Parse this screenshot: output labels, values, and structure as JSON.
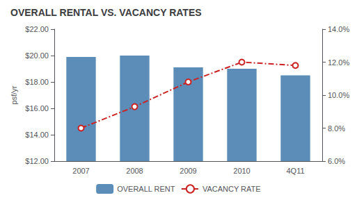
{
  "chart_data": {
    "type": "bar",
    "title": "OVERALL RENTAL VS. VACANCY RATES",
    "categories": [
      "2007",
      "2008",
      "2009",
      "2010",
      "4Q11"
    ],
    "ylabel": "psf/yr",
    "ylim": [
      12.0,
      22.0
    ],
    "yticks": [
      {
        "value": 12.0,
        "label": "$12.00"
      },
      {
        "value": 14.0,
        "label": "$14.00"
      },
      {
        "value": 16.0,
        "label": "$16.00"
      },
      {
        "value": 18.0,
        "label": "$18.00"
      },
      {
        "value": 20.0,
        "label": "$20.00"
      },
      {
        "value": 22.0,
        "label": "$22.00"
      }
    ],
    "y2lim": [
      0.06,
      0.14
    ],
    "y2ticks": [
      {
        "value": 0.06,
        "label": "6.0%"
      },
      {
        "value": 0.08,
        "label": "8.0%"
      },
      {
        "value": 0.1,
        "label": "10.0%"
      },
      {
        "value": 0.12,
        "label": "12.0%"
      },
      {
        "value": 0.14,
        "label": "14.0%"
      }
    ],
    "grid": false,
    "legend": "bottom",
    "series": [
      {
        "name": "OVERALL RENT",
        "type": "bar",
        "color": "#5b8db8",
        "values": [
          19.9,
          20.0,
          19.1,
          19.0,
          18.5
        ]
      },
      {
        "name": "VACANCY RATE",
        "type": "line",
        "color": "#cc2222",
        "line_style": "dashdot",
        "marker": "circle",
        "axis": "y2",
        "values": [
          0.08,
          0.093,
          0.108,
          0.12,
          0.118
        ]
      }
    ]
  }
}
